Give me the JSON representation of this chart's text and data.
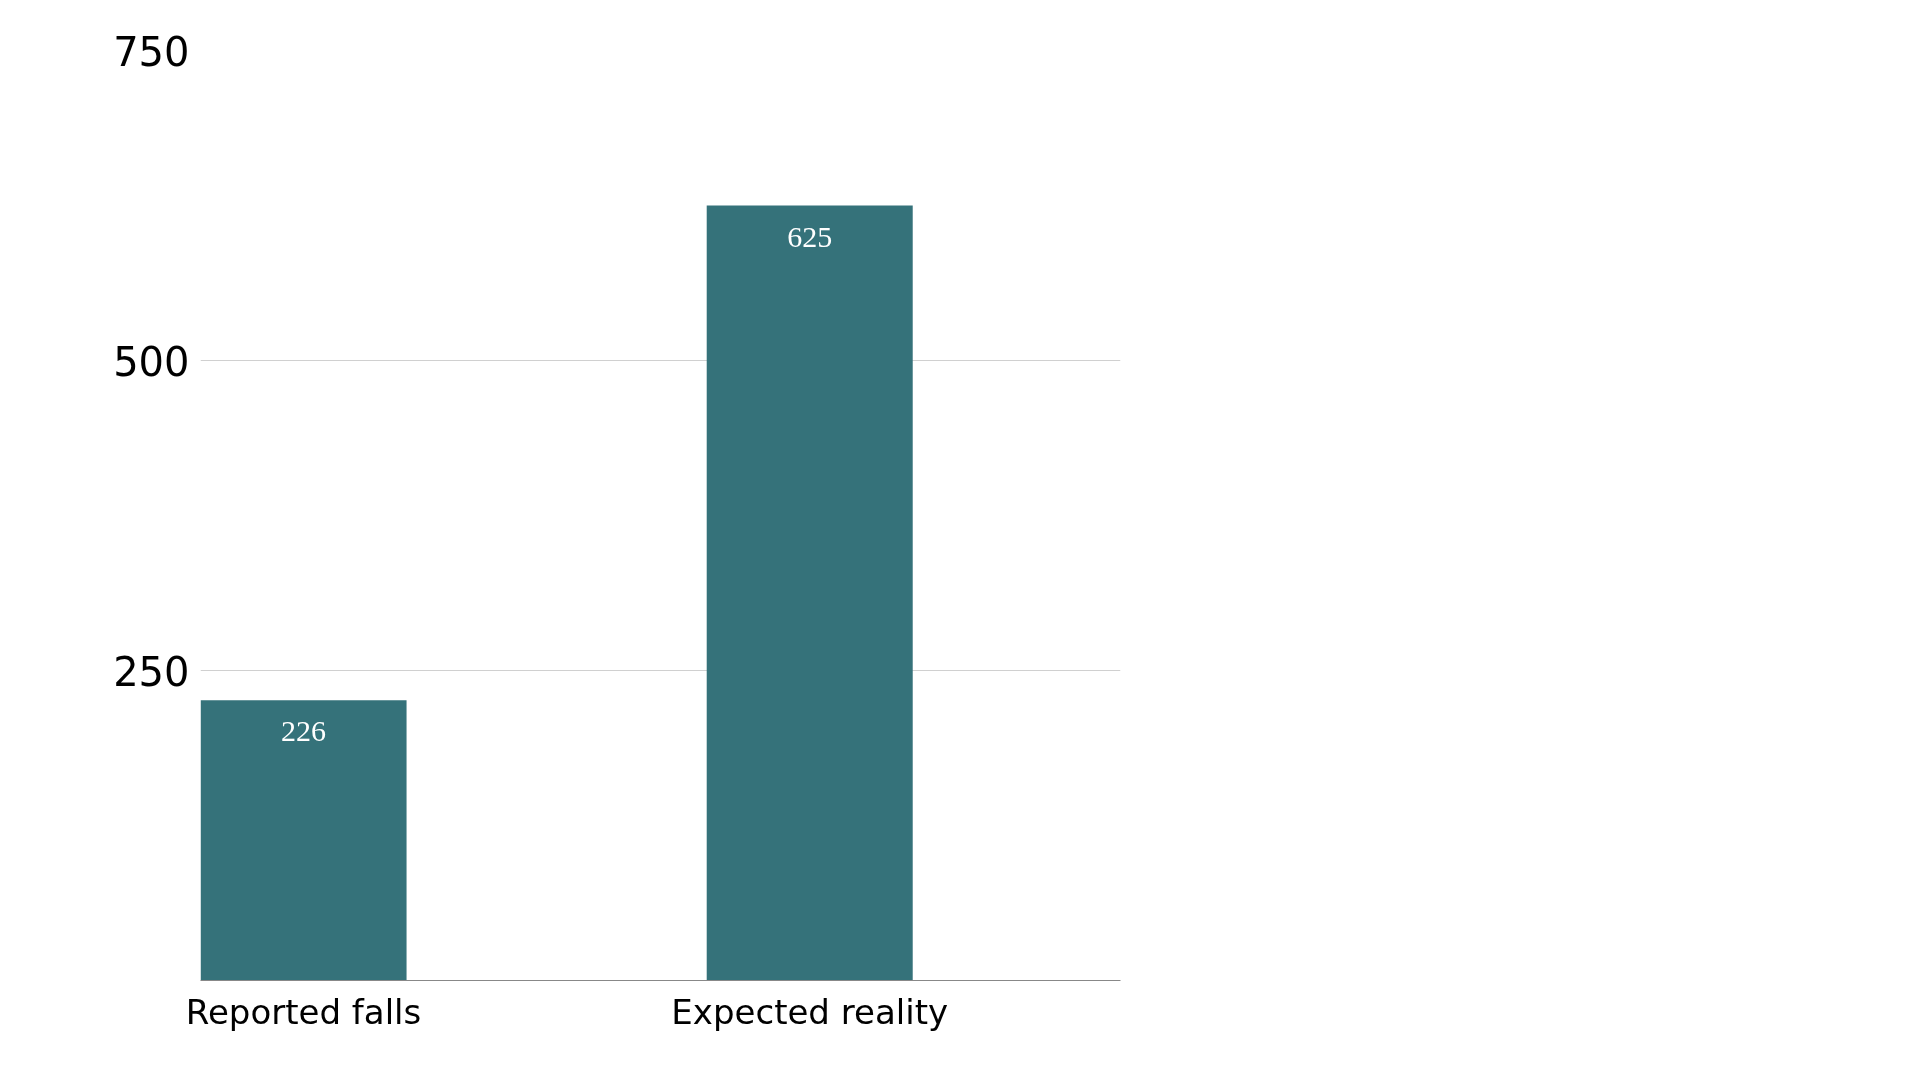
{
  "chart_data": {
    "type": "bar",
    "categories": [
      "Reported falls",
      "Expected reality"
    ],
    "values": [
      226,
      625
    ],
    "color": "#35727a",
    "ylim": [
      0,
      750
    ],
    "yticks": [
      250,
      500,
      750
    ],
    "grid": "y",
    "data_labels": true
  }
}
